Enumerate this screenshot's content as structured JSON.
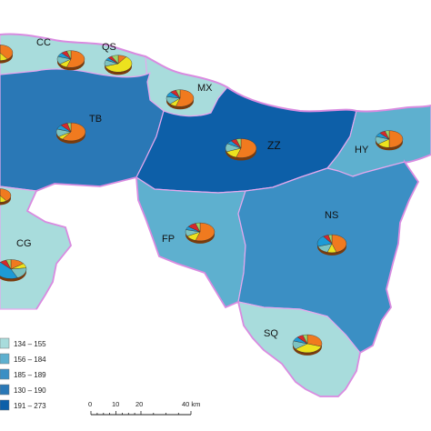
{
  "map": {
    "colors": {
      "sea_border": "#d98be0",
      "internal_border": "#e6a8ee",
      "class_1": "#a8dcdc",
      "class_2": "#5eb0cf",
      "class_3": "#3b8fc4",
      "class_4": "#2a78b6",
      "class_5": "#0d5fa8"
    },
    "regions": [
      {
        "id": "CC",
        "label": "CC"
      },
      {
        "id": "QS",
        "label": "QS"
      },
      {
        "id": "MX",
        "label": "MX"
      },
      {
        "id": "TB",
        "label": "TB"
      },
      {
        "id": "ZZ",
        "label": "ZZ"
      },
      {
        "id": "HY",
        "label": "HY"
      },
      {
        "id": "CG",
        "label": "CG"
      },
      {
        "id": "FP",
        "label": "FP"
      },
      {
        "id": "NS",
        "label": "NS"
      },
      {
        "id": "SQ",
        "label": "SQ"
      }
    ],
    "pie_palette": [
      "#f07a1f",
      "#ede21e",
      "#7dc3c0",
      "#1d9ad6",
      "#d6282b",
      "#9fd46a"
    ],
    "pies": [
      {
        "region": "CC",
        "fractions": [
          0.55,
          0.1,
          0.15,
          0.08,
          0.07,
          0.05
        ]
      },
      {
        "region": "QS",
        "fractions": [
          0.1,
          0.6,
          0.12,
          0.05,
          0.05,
          0.08
        ]
      },
      {
        "region": "MX",
        "fractions": [
          0.55,
          0.08,
          0.15,
          0.1,
          0.07,
          0.05
        ]
      },
      {
        "region": "TB",
        "fractions": [
          0.6,
          0.06,
          0.14,
          0.08,
          0.08,
          0.04
        ]
      },
      {
        "region": "ZZ",
        "fractions": [
          0.55,
          0.14,
          0.14,
          0.06,
          0.06,
          0.05
        ]
      },
      {
        "region": "HY",
        "fractions": [
          0.5,
          0.15,
          0.15,
          0.08,
          0.07,
          0.05
        ]
      },
      {
        "region": "CG",
        "fractions": [
          0.15,
          0.08,
          0.2,
          0.45,
          0.07,
          0.05
        ]
      },
      {
        "region": "FP",
        "fractions": [
          0.55,
          0.12,
          0.12,
          0.06,
          0.1,
          0.05
        ]
      },
      {
        "region": "NS",
        "fractions": [
          0.45,
          0.1,
          0.15,
          0.2,
          0.06,
          0.04
        ]
      },
      {
        "region": "SQ",
        "fractions": [
          0.3,
          0.35,
          0.15,
          0.08,
          0.07,
          0.05
        ]
      },
      {
        "region": "edge-north-west",
        "fractions": [
          0.4,
          0.1,
          0.1,
          0.1,
          0.3,
          0.0
        ]
      },
      {
        "region": "edge-west",
        "fractions": [
          0.4,
          0.1,
          0.2,
          0.2,
          0.1,
          0.0
        ]
      }
    ]
  },
  "legend": {
    "items": [
      {
        "range": "134 – 155",
        "color": "#a8dcdc"
      },
      {
        "range": "156 – 184",
        "color": "#5eb0cf"
      },
      {
        "range": "185 – 189",
        "color": "#3b8fc4"
      },
      {
        "range": "130 – 190",
        "color": "#2a78b6"
      },
      {
        "range": "191 – 273",
        "color": "#0d5fa8"
      }
    ]
  },
  "scalebar": {
    "ticks": [
      "0",
      "10",
      "20",
      "40 km"
    ]
  }
}
